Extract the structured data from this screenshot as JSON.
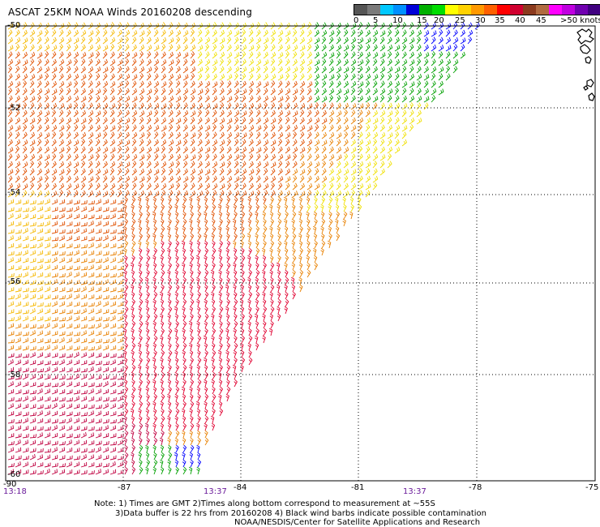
{
  "header": {
    "title": "ASCAT 25KM NOAA Winds 20160208 descending"
  },
  "speed_scale": {
    "labels": [
      "0",
      "5",
      "10",
      "15",
      "20",
      "25",
      "30",
      "35",
      "40",
      "45",
      ">50 knots"
    ],
    "colors": [
      "#555555",
      "#7a7a7a",
      "#00c8ff",
      "#0090ff",
      "#0000d8",
      "#00b000",
      "#00dd00",
      "#ffff00",
      "#ffd200",
      "#ff9900",
      "#ff6000",
      "#ff0000",
      "#d00030",
      "#8b3a1e",
      "#b06a40",
      "#ff00ff",
      "#c000e0",
      "#7000b0",
      "#400080"
    ]
  },
  "axes": {
    "lat_labels": [
      "-50",
      "-52",
      "-54",
      "-56",
      "-58",
      "-60"
    ],
    "lon_labels": [
      "-90",
      "-87",
      "-84",
      "-81",
      "-78",
      "-75"
    ]
  },
  "times": [
    "13:18",
    "13:37",
    "13:37"
  ],
  "notes": {
    "line1": "Note: 1) Times are GMT 2)Times along bottom correspond to measurement at ~55S",
    "line2": "3)Data buffer is 22 hrs from 20160208 4) Black wind barbs indicate possible contamination",
    "line3": "NOAA/NESDIS/Center for Satellite Applications and Research"
  },
  "map_data": {
    "lat_range": [
      -60,
      -50
    ],
    "lon_range": [
      -90,
      -75
    ],
    "wind_colors": {
      "green": "#00a000",
      "blue": "#0000ff",
      "yellow": "#f0e000",
      "gold": "#f5b800",
      "orange": "#e88000",
      "dark_orange": "#e05000",
      "red": "#e00030",
      "crimson": "#c00040"
    }
  }
}
